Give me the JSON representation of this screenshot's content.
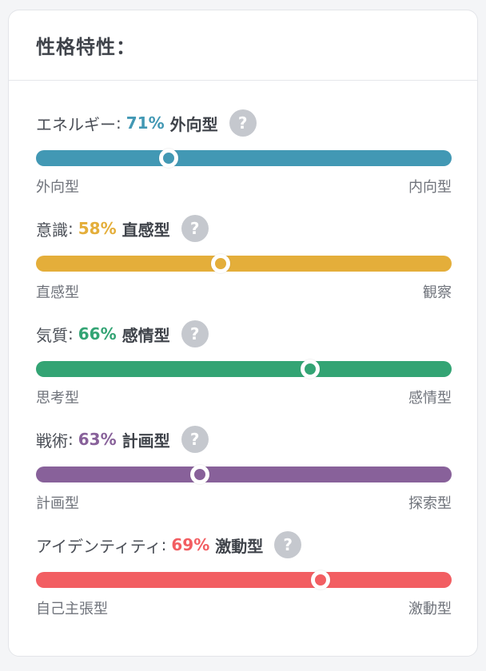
{
  "title": "性格特性：",
  "help_glyph": "?",
  "traits": [
    {
      "label": "エネルギー",
      "sep": ":",
      "percent": "71%",
      "type": "外向型",
      "left": "外向型",
      "right": "内向型",
      "color": "#4298b4",
      "knob_position": 0.32
    },
    {
      "label": "意識",
      "sep": ":",
      "percent": "58%",
      "type": "直感型",
      "left": "直感型",
      "right": "観察",
      "color": "#e4ae3a",
      "knob_position": 0.445
    },
    {
      "label": "気質",
      "sep": ":",
      "percent": "66%",
      "type": "感情型",
      "left": "思考型",
      "right": "感情型",
      "color": "#33a474",
      "knob_position": 0.66
    },
    {
      "label": "戦術",
      "sep": ":",
      "percent": "63%",
      "type": "計画型",
      "left": "計画型",
      "right": "探索型",
      "color": "#88619a",
      "knob_position": 0.395
    },
    {
      "label": "アイデンティティ",
      "sep": ":",
      "percent": "69%",
      "type": "激動型",
      "left": "自己主張型",
      "right": "激動型",
      "color": "#f25e62",
      "knob_position": 0.685
    }
  ]
}
